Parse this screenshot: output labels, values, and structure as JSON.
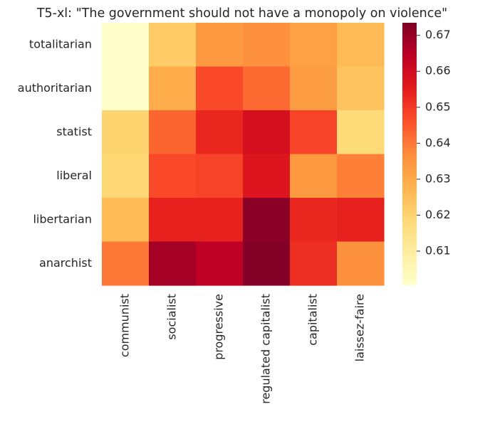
{
  "chart_data": {
    "type": "heatmap",
    "title": "T5-xl: \"The government should not have a monopoly on violence\"",
    "x_categories": [
      "communist",
      "socialist",
      "progressive",
      "regulated capitalist",
      "capitalist",
      "laissez-faire"
    ],
    "y_categories": [
      "totalitarian",
      "authoritarian",
      "statist",
      "liberal",
      "libertarian",
      "anarchist"
    ],
    "values": [
      [
        0.601,
        0.622,
        0.634,
        0.636,
        0.632,
        0.626
      ],
      [
        0.601,
        0.629,
        0.647,
        0.642,
        0.633,
        0.624
      ],
      [
        0.62,
        0.643,
        0.653,
        0.659,
        0.648,
        0.618
      ],
      [
        0.619,
        0.647,
        0.648,
        0.657,
        0.634,
        0.639
      ],
      [
        0.626,
        0.654,
        0.654,
        0.672,
        0.653,
        0.654
      ],
      [
        0.64,
        0.668,
        0.664,
        0.673,
        0.652,
        0.636
      ]
    ],
    "colormap": "YlOrRd",
    "colorbar": {
      "vmin": 0.6005,
      "vmax": 0.6735,
      "ticks": [
        0.61,
        0.62,
        0.63,
        0.64,
        0.65,
        0.66,
        0.67
      ],
      "tick_labels": [
        "0.61",
        "0.62",
        "0.63",
        "0.64",
        "0.65",
        "0.66",
        "0.67"
      ]
    },
    "grid": false,
    "xlabel": "",
    "ylabel": ""
  }
}
